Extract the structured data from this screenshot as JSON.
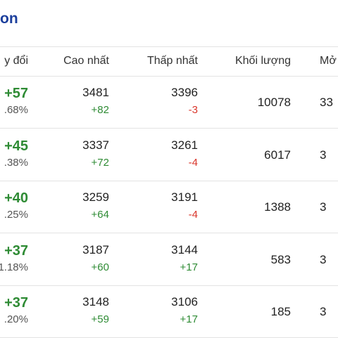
{
  "header": {
    "title": "on"
  },
  "table": {
    "columns": [
      "y đổi",
      "Cao nhất",
      "Thấp nhất",
      "Khối lượng",
      "Mở"
    ],
    "rows": [
      [
        {
          "main": "+57",
          "sub": ".68%"
        },
        {
          "main": "3481",
          "sub": "+82"
        },
        {
          "main": "3396",
          "sub": "-3"
        },
        "10078",
        "33"
      ],
      [
        {
          "main": "+45",
          "sub": ".38%"
        },
        {
          "main": "3337",
          "sub": "+72"
        },
        {
          "main": "3261",
          "sub": "-4"
        },
        "6017",
        "3"
      ],
      [
        {
          "main": "+40",
          "sub": ".25%"
        },
        {
          "main": "3259",
          "sub": "+64"
        },
        {
          "main": "3191",
          "sub": "-4"
        },
        "1388",
        "3"
      ],
      [
        {
          "main": "+37",
          "sub": "1.18%"
        },
        {
          "main": "3187",
          "sub": "+60"
        },
        {
          "main": "3144",
          "sub": "+17"
        },
        "583",
        "3"
      ],
      [
        {
          "main": "+37",
          "sub": ".20%"
        },
        {
          "main": "3148",
          "sub": "+59"
        },
        {
          "main": "3106",
          "sub": "+17"
        },
        "185",
        "3"
      ]
    ]
  }
}
